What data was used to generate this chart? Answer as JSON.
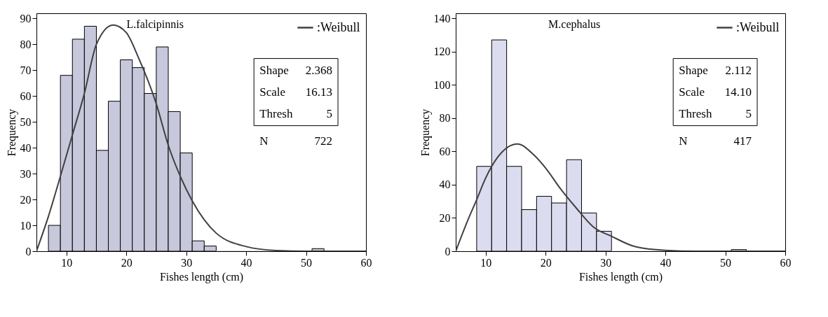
{
  "chart_data": [
    {
      "type": "histogram",
      "title": "L.falcipinnis",
      "xlabel": "Fishes length (cm)",
      "ylabel": "Frequency",
      "bins": [
        7,
        9,
        11,
        13,
        15,
        17,
        19,
        21,
        23,
        25,
        27,
        29,
        31,
        33,
        35,
        37,
        39,
        41,
        43,
        45,
        47,
        49,
        51,
        53
      ],
      "series": [
        {
          "color": "#c8c8dc",
          "values": [
            10,
            68,
            82,
            87,
            39,
            58,
            74,
            71,
            61,
            79,
            54,
            38,
            4,
            2,
            0,
            0,
            0,
            0,
            0,
            0,
            0,
            0,
            1
          ]
        },
        {
          "type": "line",
          "name": ":Weibull",
          "color": "#404040",
          "x": [
            5,
            7,
            9,
            11,
            13,
            15,
            17.8,
            20,
            22,
            25,
            27,
            29,
            31,
            35,
            40,
            45,
            50,
            60
          ],
          "values": [
            0,
            13.5,
            29,
            45,
            61,
            80,
            87.5,
            84.5,
            75,
            57,
            41,
            29,
            19.5,
            7,
            1.8,
            0.3,
            0,
            0
          ]
        }
      ],
      "annotations": [
        "Shape 2.368",
        "Scale 16.13",
        "Thresh 5",
        "N 722"
      ],
      "xlim": [
        5,
        60
      ],
      "xticks": [
        10,
        20,
        30,
        40,
        50,
        60
      ],
      "ylim": [
        0,
        92
      ],
      "yticks": [
        0,
        10,
        20,
        30,
        40,
        50,
        60,
        70,
        80,
        90
      ],
      "legend": "top right"
    },
    {
      "type": "histogram",
      "title": "M.cephalus",
      "xlabel": "Fishes length (cm)",
      "ylabel": "Frequency",
      "bins": [
        8.5,
        11,
        13.5,
        16,
        18.5,
        21,
        23.5,
        26,
        28.5,
        31,
        33.5,
        36,
        38.5,
        41,
        43.5,
        46,
        48.5,
        51,
        53.5
      ],
      "series": [
        {
          "color": "#dcdcf0",
          "values": [
            51,
            127,
            51,
            25,
            33,
            29,
            55,
            23,
            12,
            0,
            0,
            0,
            0,
            0,
            0,
            0,
            0,
            1
          ]
        },
        {
          "type": "line",
          "name": ":Weibull",
          "color": "#404040",
          "x": [
            5,
            7,
            8.5,
            10,
            12,
            15.3,
            18,
            20,
            22.5,
            25,
            28,
            31,
            35,
            40,
            45,
            60
          ],
          "values": [
            0,
            18.5,
            31,
            44,
            56.5,
            64.5,
            58,
            50,
            37.5,
            26.5,
            14.5,
            9,
            2.7,
            0.5,
            0,
            0
          ]
        }
      ],
      "annotations": [
        "Shape 2.112",
        "Scale 14.10",
        "Thresh 5",
        "N 417"
      ],
      "xlim": [
        5,
        60
      ],
      "xticks": [
        10,
        20,
        30,
        40,
        50,
        60
      ],
      "ylim": [
        0,
        143
      ],
      "yticks": [
        0,
        20,
        40,
        60,
        80,
        100,
        120,
        140
      ],
      "legend": "top right"
    }
  ]
}
